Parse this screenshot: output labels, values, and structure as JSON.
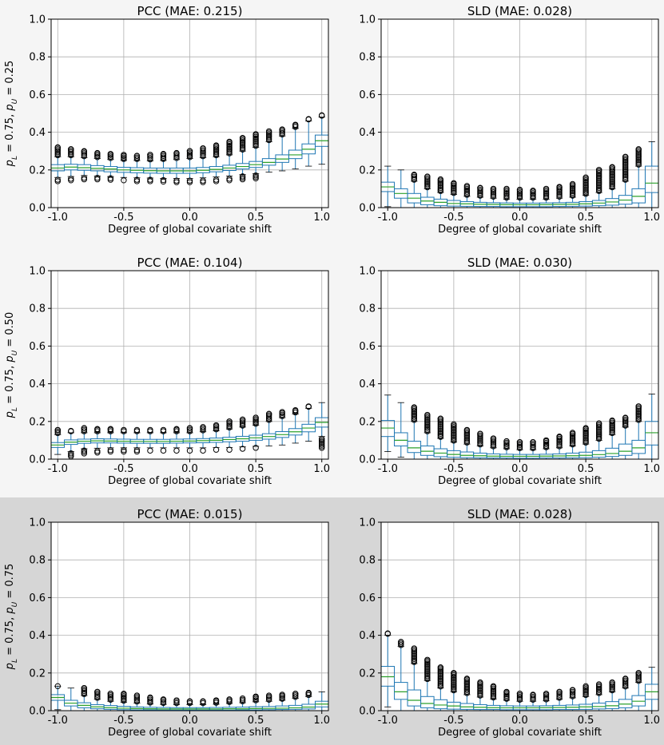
{
  "figure": {
    "row_backgrounds": [
      "#f5f5f5",
      "#f5f5f5",
      "#d6d6d6"
    ],
    "box_color": "#1f77b4",
    "median_color": "#2ca02c",
    "grid_color": "#b0b0b0"
  },
  "chart_data": [
    {
      "type": "box",
      "title": "PCC (MAE: 0.215)",
      "xlabel": "Degree of global covariate shift",
      "ylabel": "p_L = 0.75, p_U = 0.25",
      "ylabel_parts": {
        "a": "p",
        "a_sub": "L",
        "a_val": " = 0.75, ",
        "b": "p",
        "b_sub": "U",
        "b_val": " = 0.25"
      },
      "xlim": [
        -1.05,
        1.05
      ],
      "ylim": [
        0,
        1
      ],
      "xticks": [
        "-1.0",
        "-0.5",
        "0.0",
        "0.5",
        "1.0"
      ],
      "yticks": [
        "0.0",
        "0.2",
        "0.4",
        "0.6",
        "0.8",
        "1.0"
      ],
      "x": [
        -1.0,
        -0.9,
        -0.8,
        -0.7,
        -0.6,
        -0.5,
        -0.4,
        -0.3,
        -0.2,
        -0.1,
        0.0,
        0.1,
        0.2,
        0.3,
        0.4,
        0.5,
        0.6,
        0.7,
        0.8,
        0.9,
        1.0
      ],
      "median": [
        0.21,
        0.215,
        0.212,
        0.208,
        0.205,
        0.2,
        0.198,
        0.196,
        0.195,
        0.195,
        0.195,
        0.198,
        0.203,
        0.21,
        0.218,
        0.228,
        0.24,
        0.258,
        0.28,
        0.31,
        0.355
      ],
      "q1": [
        0.195,
        0.2,
        0.198,
        0.195,
        0.19,
        0.187,
        0.185,
        0.183,
        0.182,
        0.182,
        0.182,
        0.185,
        0.19,
        0.197,
        0.205,
        0.213,
        0.225,
        0.24,
        0.26,
        0.285,
        0.325
      ],
      "q3": [
        0.228,
        0.23,
        0.228,
        0.223,
        0.218,
        0.214,
        0.212,
        0.21,
        0.21,
        0.21,
        0.21,
        0.213,
        0.218,
        0.225,
        0.234,
        0.245,
        0.26,
        0.28,
        0.305,
        0.338,
        0.385
      ],
      "wlo": [
        0.16,
        0.165,
        0.17,
        0.168,
        0.165,
        0.16,
        0.158,
        0.157,
        0.155,
        0.155,
        0.155,
        0.158,
        0.163,
        0.168,
        0.175,
        0.18,
        0.188,
        0.195,
        0.205,
        0.22,
        0.23
      ],
      "whi": [
        0.27,
        0.27,
        0.265,
        0.26,
        0.255,
        0.25,
        0.25,
        0.248,
        0.25,
        0.255,
        0.26,
        0.265,
        0.27,
        0.28,
        0.3,
        0.32,
        0.35,
        0.38,
        0.42,
        0.46,
        0.48
      ],
      "out_hi": [
        0.32,
        0.31,
        0.3,
        0.29,
        0.285,
        0.28,
        0.275,
        0.28,
        0.285,
        0.29,
        0.3,
        0.315,
        0.33,
        0.35,
        0.37,
        0.39,
        0.405,
        0.415,
        0.44,
        0.47,
        0.49
      ],
      "out_lo": [
        0.14,
        0.145,
        0.15,
        0.15,
        0.148,
        0.145,
        0.14,
        0.14,
        0.138,
        0.135,
        0.135,
        0.135,
        0.14,
        0.145,
        0.15,
        0.155,
        null,
        null,
        null,
        null,
        null
      ]
    },
    {
      "type": "box",
      "title": "SLD (MAE: 0.028)",
      "xlabel": "Degree of global covariate shift",
      "xlim": [
        -1.05,
        1.05
      ],
      "ylim": [
        0,
        1
      ],
      "xticks": [
        "-1.0",
        "-0.5",
        "0.0",
        "0.5",
        "1.0"
      ],
      "yticks": [
        "0.0",
        "0.2",
        "0.4",
        "0.6",
        "0.8",
        "1.0"
      ],
      "x": [
        -1.0,
        -0.9,
        -0.8,
        -0.7,
        -0.6,
        -0.5,
        -0.4,
        -0.3,
        -0.2,
        -0.1,
        0.0,
        0.1,
        0.2,
        0.3,
        0.4,
        0.5,
        0.6,
        0.7,
        0.8,
        0.9,
        1.0
      ],
      "median": [
        0.11,
        0.075,
        0.05,
        0.035,
        0.028,
        0.022,
        0.02,
        0.018,
        0.017,
        0.016,
        0.015,
        0.015,
        0.016,
        0.017,
        0.018,
        0.02,
        0.024,
        0.03,
        0.04,
        0.06,
        0.13
      ],
      "q1": [
        0.085,
        0.05,
        0.025,
        0.015,
        0.01,
        0.008,
        0.007,
        0.006,
        0.006,
        0.005,
        0.005,
        0.005,
        0.005,
        0.006,
        0.007,
        0.008,
        0.01,
        0.013,
        0.018,
        0.025,
        0.08
      ],
      "q3": [
        0.135,
        0.1,
        0.075,
        0.055,
        0.045,
        0.038,
        0.032,
        0.028,
        0.026,
        0.025,
        0.024,
        0.024,
        0.025,
        0.026,
        0.028,
        0.032,
        0.038,
        0.048,
        0.065,
        0.1,
        0.22
      ],
      "wlo": [
        0.005,
        0,
        0,
        0,
        0,
        0,
        0,
        0,
        0,
        0,
        0,
        0,
        0,
        0,
        0,
        0,
        0,
        0,
        0,
        0,
        0
      ],
      "whi": [
        0.22,
        0.2,
        0.14,
        0.1,
        0.08,
        0.07,
        0.06,
        0.055,
        0.05,
        0.045,
        0.045,
        0.045,
        0.045,
        0.05,
        0.055,
        0.065,
        0.08,
        0.1,
        0.14,
        0.22,
        0.35
      ],
      "out_hi": [
        null,
        null,
        0.175,
        0.165,
        0.15,
        0.13,
        0.115,
        0.105,
        0.1,
        0.1,
        0.095,
        0.09,
        0.1,
        0.11,
        0.125,
        0.16,
        0.2,
        0.215,
        0.27,
        0.31,
        null
      ],
      "out_lo": [
        null,
        null,
        null,
        null,
        null,
        null,
        null,
        null,
        null,
        null,
        null,
        null,
        null,
        null,
        null,
        null,
        null,
        null,
        null,
        null,
        null
      ]
    },
    {
      "type": "box",
      "title": "PCC (MAE: 0.104)",
      "xlabel": "Degree of global covariate shift",
      "ylabel": "p_L = 0.75, p_U = 0.50",
      "ylabel_parts": {
        "a": "p",
        "a_sub": "L",
        "a_val": " = 0.75, ",
        "b": "p",
        "b_sub": "U",
        "b_val": " = 0.50"
      },
      "xlim": [
        -1.05,
        1.05
      ],
      "ylim": [
        0,
        1
      ],
      "xticks": [
        "-1.0",
        "-0.5",
        "0.0",
        "0.5",
        "1.0"
      ],
      "yticks": [
        "0.0",
        "0.2",
        "0.4",
        "0.6",
        "0.8",
        "1.0"
      ],
      "x": [
        -1.0,
        -0.9,
        -0.8,
        -0.7,
        -0.6,
        -0.5,
        -0.4,
        -0.3,
        -0.2,
        -0.1,
        0.0,
        0.1,
        0.2,
        0.3,
        0.4,
        0.5,
        0.6,
        0.7,
        0.8,
        0.9,
        1.0
      ],
      "median": [
        0.075,
        0.09,
        0.095,
        0.097,
        0.096,
        0.095,
        0.094,
        0.094,
        0.094,
        0.095,
        0.096,
        0.098,
        0.1,
        0.104,
        0.108,
        0.113,
        0.12,
        0.13,
        0.145,
        0.165,
        0.195
      ],
      "q1": [
        0.062,
        0.078,
        0.084,
        0.086,
        0.086,
        0.085,
        0.084,
        0.084,
        0.084,
        0.085,
        0.086,
        0.087,
        0.089,
        0.092,
        0.095,
        0.1,
        0.106,
        0.115,
        0.128,
        0.145,
        0.17
      ],
      "q3": [
        0.088,
        0.102,
        0.106,
        0.108,
        0.107,
        0.106,
        0.105,
        0.105,
        0.105,
        0.106,
        0.107,
        0.109,
        0.112,
        0.116,
        0.121,
        0.127,
        0.135,
        0.146,
        0.162,
        0.185,
        0.22
      ],
      "wlo": [
        0.025,
        0.04,
        0.055,
        0.058,
        0.06,
        0.06,
        0.06,
        0.06,
        0.06,
        0.06,
        0.06,
        0.06,
        0.062,
        0.062,
        0.065,
        0.068,
        0.07,
        0.075,
        0.085,
        0.095,
        0.12
      ],
      "whi": [
        0.13,
        0.14,
        0.14,
        0.14,
        0.14,
        0.14,
        0.14,
        0.14,
        0.14,
        0.14,
        0.14,
        0.145,
        0.15,
        0.16,
        0.17,
        0.18,
        0.2,
        0.22,
        0.24,
        0.27,
        0.3
      ],
      "out_hi": [
        0.155,
        0.15,
        0.165,
        0.16,
        0.16,
        0.155,
        0.155,
        0.155,
        0.155,
        0.16,
        0.165,
        0.17,
        0.18,
        0.2,
        0.21,
        0.22,
        0.24,
        0.25,
        0.26,
        0.28,
        null
      ],
      "out_lo": [
        0.02,
        0.015,
        0.03,
        0.035,
        0.04,
        0.04,
        0.04,
        0.045,
        0.045,
        0.045,
        0.045,
        0.045,
        0.05,
        0.05,
        0.055,
        0.06,
        null,
        null,
        null,
        null,
        0.06
      ]
    },
    {
      "type": "box",
      "title": "SLD (MAE: 0.030)",
      "xlabel": "Degree of global covariate shift",
      "xlim": [
        -1.05,
        1.05
      ],
      "ylim": [
        0,
        1
      ],
      "xticks": [
        "-1.0",
        "-0.5",
        "0.0",
        "0.5",
        "1.0"
      ],
      "yticks": [
        "0.0",
        "0.2",
        "0.4",
        "0.6",
        "0.8",
        "1.0"
      ],
      "x": [
        -1.0,
        -0.9,
        -0.8,
        -0.7,
        -0.6,
        -0.5,
        -0.4,
        -0.3,
        -0.2,
        -0.1,
        0.0,
        0.1,
        0.2,
        0.3,
        0.4,
        0.5,
        0.6,
        0.7,
        0.8,
        0.9,
        1.0
      ],
      "median": [
        0.165,
        0.1,
        0.06,
        0.042,
        0.032,
        0.025,
        0.02,
        0.018,
        0.016,
        0.015,
        0.015,
        0.015,
        0.016,
        0.017,
        0.018,
        0.02,
        0.024,
        0.03,
        0.042,
        0.06,
        0.14
      ],
      "q1": [
        0.12,
        0.07,
        0.035,
        0.02,
        0.013,
        0.01,
        0.008,
        0.007,
        0.006,
        0.006,
        0.005,
        0.005,
        0.006,
        0.006,
        0.007,
        0.008,
        0.01,
        0.014,
        0.02,
        0.03,
        0.075
      ],
      "q3": [
        0.205,
        0.14,
        0.095,
        0.07,
        0.055,
        0.045,
        0.038,
        0.032,
        0.028,
        0.026,
        0.025,
        0.025,
        0.026,
        0.028,
        0.032,
        0.037,
        0.045,
        0.058,
        0.08,
        0.1,
        0.2
      ],
      "wlo": [
        0.04,
        0.01,
        0,
        0,
        0,
        0,
        0,
        0,
        0,
        0,
        0,
        0,
        0,
        0,
        0,
        0,
        0,
        0,
        0,
        0,
        0
      ],
      "whi": [
        0.34,
        0.3,
        0.2,
        0.14,
        0.11,
        0.09,
        0.08,
        0.07,
        0.06,
        0.055,
        0.05,
        0.05,
        0.055,
        0.06,
        0.07,
        0.08,
        0.1,
        0.13,
        0.17,
        0.2,
        0.345
      ],
      "out_hi": [
        null,
        null,
        0.275,
        0.235,
        0.215,
        0.185,
        0.155,
        0.135,
        0.11,
        0.095,
        0.09,
        0.09,
        0.1,
        0.12,
        0.14,
        0.165,
        0.19,
        0.205,
        0.22,
        0.28,
        null
      ],
      "out_lo": [
        null,
        null,
        null,
        null,
        null,
        null,
        null,
        null,
        null,
        null,
        null,
        null,
        null,
        null,
        null,
        null,
        null,
        null,
        null,
        null,
        null
      ]
    },
    {
      "type": "box",
      "title": "PCC (MAE: 0.015)",
      "xlabel": "Degree of global covariate shift",
      "ylabel": "p_L = 0.75, p_U = 0.75",
      "ylabel_parts": {
        "a": "p",
        "a_sub": "L",
        "a_val": " = 0.75, ",
        "b": "p",
        "b_sub": "U",
        "b_val": " = 0.75"
      },
      "xlim": [
        -1.05,
        1.05
      ],
      "ylim": [
        0,
        1
      ],
      "xticks": [
        "-1.0",
        "-0.5",
        "0.0",
        "0.5",
        "1.0"
      ],
      "yticks": [
        "0.0",
        "0.2",
        "0.4",
        "0.6",
        "0.8",
        "1.0"
      ],
      "x": [
        -1.0,
        -0.9,
        -0.8,
        -0.7,
        -0.6,
        -0.5,
        -0.4,
        -0.3,
        -0.2,
        -0.1,
        0.0,
        0.1,
        0.2,
        0.3,
        0.4,
        0.5,
        0.6,
        0.7,
        0.8,
        0.9,
        1.0
      ],
      "median": [
        0.07,
        0.04,
        0.028,
        0.02,
        0.016,
        0.013,
        0.011,
        0.01,
        0.009,
        0.009,
        0.009,
        0.009,
        0.009,
        0.01,
        0.01,
        0.011,
        0.012,
        0.013,
        0.015,
        0.019,
        0.035
      ],
      "q1": [
        0.055,
        0.025,
        0.015,
        0.01,
        0.007,
        0.005,
        0.004,
        0.004,
        0.003,
        0.003,
        0.003,
        0.003,
        0.003,
        0.003,
        0.004,
        0.004,
        0.005,
        0.006,
        0.007,
        0.009,
        0.02
      ],
      "q3": [
        0.085,
        0.055,
        0.042,
        0.032,
        0.027,
        0.023,
        0.02,
        0.018,
        0.017,
        0.016,
        0.016,
        0.016,
        0.017,
        0.018,
        0.019,
        0.021,
        0.022,
        0.025,
        0.028,
        0.034,
        0.05
      ],
      "wlo": [
        0.005,
        0,
        0,
        0,
        0,
        0,
        0,
        0,
        0,
        0,
        0,
        0,
        0,
        0,
        0,
        0,
        0,
        0,
        0,
        0,
        0
      ],
      "whi": [
        0.13,
        0.12,
        0.08,
        0.06,
        0.05,
        0.045,
        0.04,
        0.035,
        0.033,
        0.032,
        0.032,
        0.032,
        0.034,
        0.038,
        0.042,
        0.047,
        0.05,
        0.055,
        0.065,
        0.075,
        0.1
      ],
      "out_hi": [
        0.13,
        null,
        0.12,
        0.1,
        0.09,
        0.09,
        0.08,
        0.07,
        0.06,
        0.055,
        0.05,
        0.05,
        0.055,
        0.06,
        0.065,
        0.075,
        0.08,
        0.085,
        0.09,
        0.095,
        null
      ],
      "out_lo": [
        null,
        null,
        null,
        null,
        null,
        null,
        null,
        null,
        null,
        null,
        null,
        null,
        null,
        null,
        null,
        null,
        null,
        null,
        null,
        null,
        null
      ]
    },
    {
      "type": "box",
      "title": "SLD (MAE: 0.028)",
      "xlabel": "Degree of global covariate shift",
      "xlim": [
        -1.05,
        1.05
      ],
      "ylim": [
        0,
        1
      ],
      "xticks": [
        "-1.0",
        "-0.5",
        "0.0",
        "0.5",
        "1.0"
      ],
      "yticks": [
        "0.0",
        "0.2",
        "0.4",
        "0.6",
        "0.8",
        "1.0"
      ],
      "x": [
        -1.0,
        -0.9,
        -0.8,
        -0.7,
        -0.6,
        -0.5,
        -0.4,
        -0.3,
        -0.2,
        -0.1,
        0.0,
        0.1,
        0.2,
        0.3,
        0.4,
        0.5,
        0.6,
        0.7,
        0.8,
        0.9,
        1.0
      ],
      "median": [
        0.18,
        0.1,
        0.055,
        0.038,
        0.03,
        0.025,
        0.02,
        0.018,
        0.016,
        0.015,
        0.015,
        0.015,
        0.016,
        0.017,
        0.018,
        0.02,
        0.022,
        0.026,
        0.035,
        0.05,
        0.1
      ],
      "q1": [
        0.13,
        0.06,
        0.025,
        0.015,
        0.01,
        0.008,
        0.007,
        0.006,
        0.006,
        0.005,
        0.005,
        0.005,
        0.005,
        0.006,
        0.006,
        0.007,
        0.009,
        0.011,
        0.015,
        0.025,
        0.06
      ],
      "q3": [
        0.235,
        0.15,
        0.11,
        0.075,
        0.058,
        0.045,
        0.038,
        0.032,
        0.028,
        0.026,
        0.025,
        0.025,
        0.026,
        0.028,
        0.03,
        0.034,
        0.04,
        0.048,
        0.06,
        0.08,
        0.14
      ],
      "wlo": [
        0.02,
        0,
        0,
        0,
        0,
        0,
        0,
        0,
        0,
        0,
        0,
        0,
        0,
        0,
        0,
        0,
        0,
        0,
        0,
        0,
        0
      ],
      "whi": [
        0.4,
        0.34,
        0.25,
        0.16,
        0.12,
        0.1,
        0.085,
        0.072,
        0.062,
        0.055,
        0.05,
        0.05,
        0.052,
        0.06,
        0.068,
        0.075,
        0.085,
        0.1,
        0.12,
        0.15,
        0.23
      ],
      "out_hi": [
        0.41,
        0.365,
        0.33,
        0.27,
        0.23,
        0.2,
        0.17,
        0.15,
        0.13,
        0.1,
        0.09,
        0.085,
        0.09,
        0.1,
        0.11,
        0.13,
        0.14,
        0.15,
        0.17,
        0.2,
        null
      ],
      "out_lo": [
        null,
        null,
        null,
        null,
        null,
        null,
        null,
        null,
        null,
        null,
        null,
        null,
        null,
        null,
        null,
        null,
        null,
        null,
        null,
        null,
        null
      ]
    }
  ]
}
